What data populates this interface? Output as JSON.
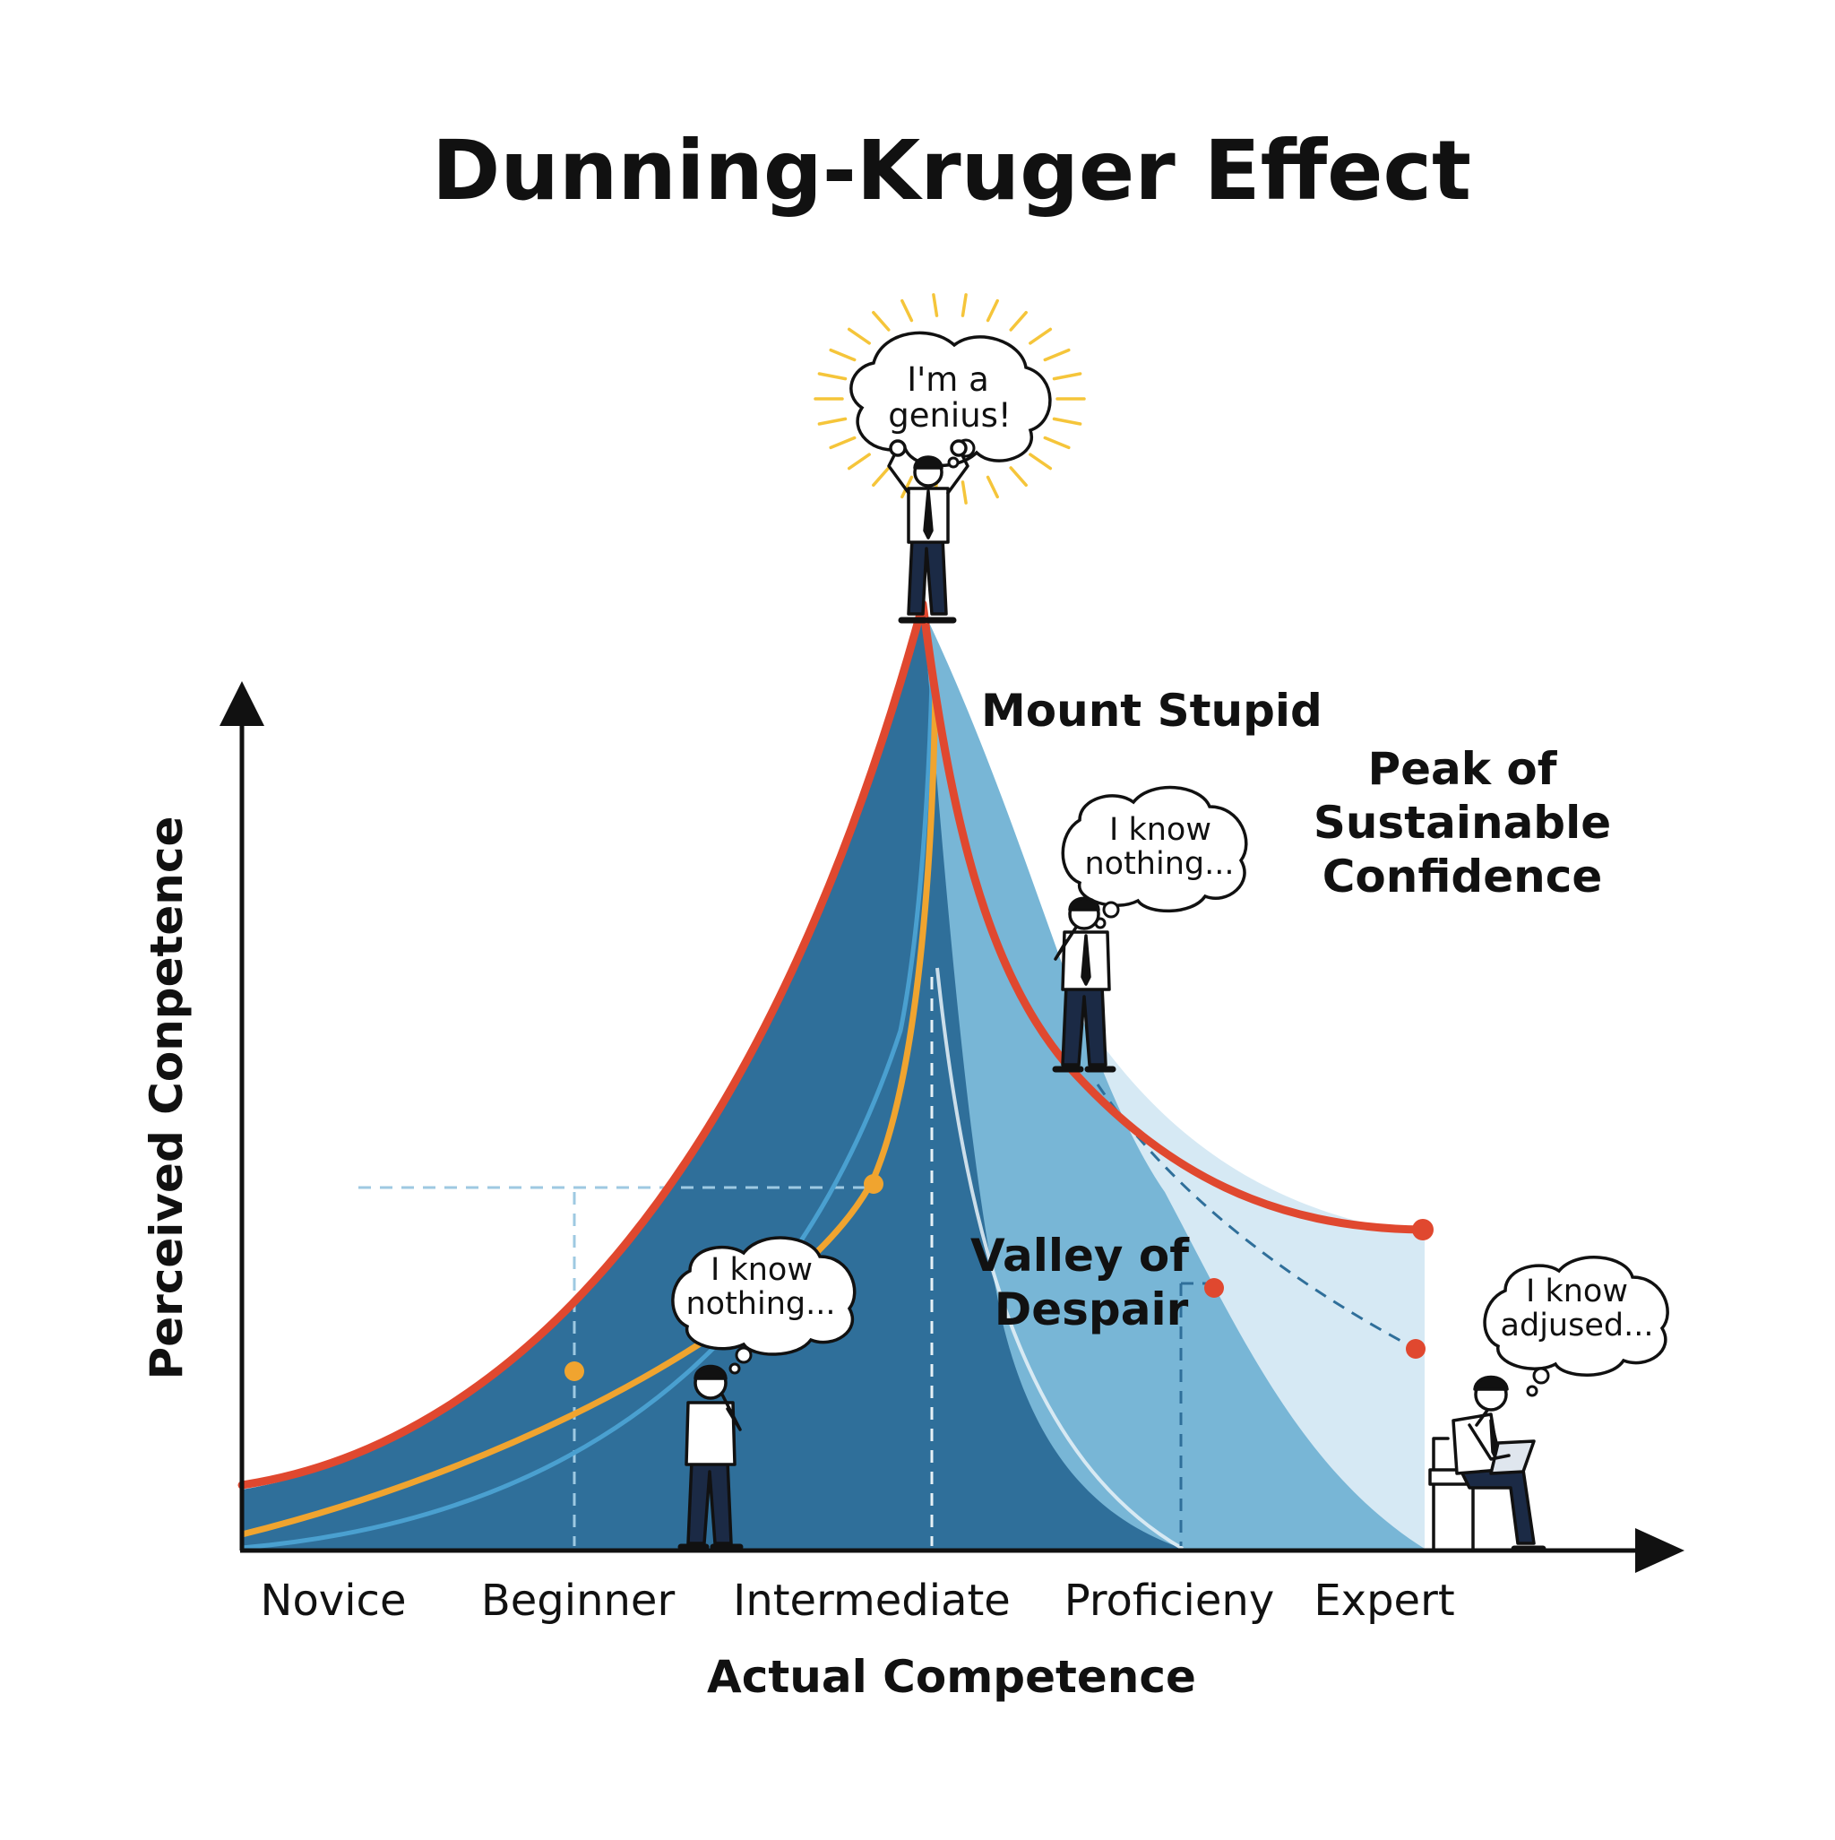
{
  "colors": {
    "red_curve": "#e0482f",
    "orange_curve": "#f0a42f",
    "blue_line": "#4aa0d0",
    "fill_dark": "#2f6f9a",
    "fill_mid": "#78b6d6",
    "fill_light": "#d6e9f4",
    "axis": "#111111",
    "ink": "#1b2a45"
  },
  "diagram": {
    "title": "Dunning-Kruger Effect",
    "y_axis_label": "Perceived Conpetence",
    "x_axis_label": "Actual Competence",
    "x_ticks": [
      "Novice",
      "Beginner",
      "Intermediate",
      "Proficieny",
      "Expert"
    ],
    "labels": {
      "mount_stupid": "Mount Stupid",
      "peak_lines": [
        "Peak of",
        "Sustainable",
        "Confidence"
      ],
      "valley_lines": [
        "Valley of",
        "Despair"
      ]
    },
    "bubbles": {
      "genius": [
        "I'm a",
        "genius!"
      ],
      "valley_person": [
        "I know",
        "nothing..."
      ],
      "beginner_person": [
        "I know",
        "nothing..."
      ],
      "expert_person": [
        "I know",
        "adjused..."
      ]
    },
    "icons": {
      "genius_figure": "cheering-person-icon",
      "valley_figure": "thinking-person-icon",
      "beginner_figure": "thinking-person-icon",
      "expert_figure": "person-on-chair-with-laptop-icon"
    }
  }
}
